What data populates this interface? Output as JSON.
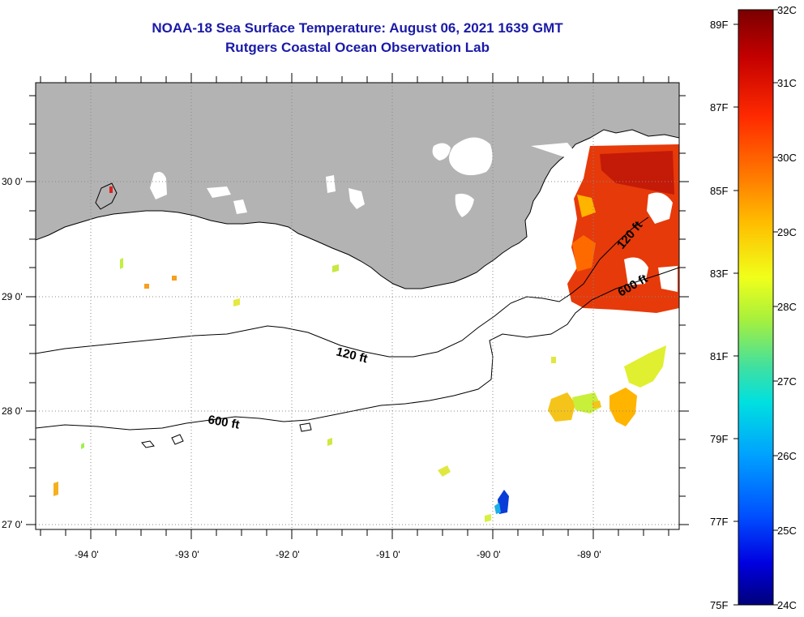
{
  "title_line1": "NOAA-18 Sea Surface Temperature:  August 06, 2021 1639 GMT",
  "title_line2": "Rutgers Coastal Ocean Observation Lab",
  "lon_labels": [
    "-94 0'",
    "-93 0'",
    "-92 0'",
    "-91 0'",
    "-90 0'",
    "-89 0'"
  ],
  "lat_labels": [
    "30 0'",
    "29 0'",
    "28 0'",
    "27 0'"
  ],
  "contours": {
    "c120_label_left": "120 ft",
    "c600_label_left": "600 ft",
    "c120_label_right": "120 ft",
    "c600_label_right": "600 ft"
  },
  "colorbar": {
    "celsius": [
      "32C",
      "31C",
      "30C",
      "29C",
      "28C",
      "27C",
      "26C",
      "25C",
      "24C"
    ],
    "fahrenheit": [
      "89F",
      "87F",
      "85F",
      "83F",
      "81F",
      "79F",
      "77F",
      "75F"
    ],
    "colors": [
      "#7a0000",
      "#c40000",
      "#ff2a00",
      "#ff7a00",
      "#ffbf00",
      "#f0ff1a",
      "#a8f03c",
      "#40e0a0",
      "#00e0e0",
      "#00a0ff",
      "#0050ff",
      "#0000e0",
      "#00007a"
    ]
  },
  "land_color": "#b3b3b3",
  "title_color": "#1a1aa8"
}
